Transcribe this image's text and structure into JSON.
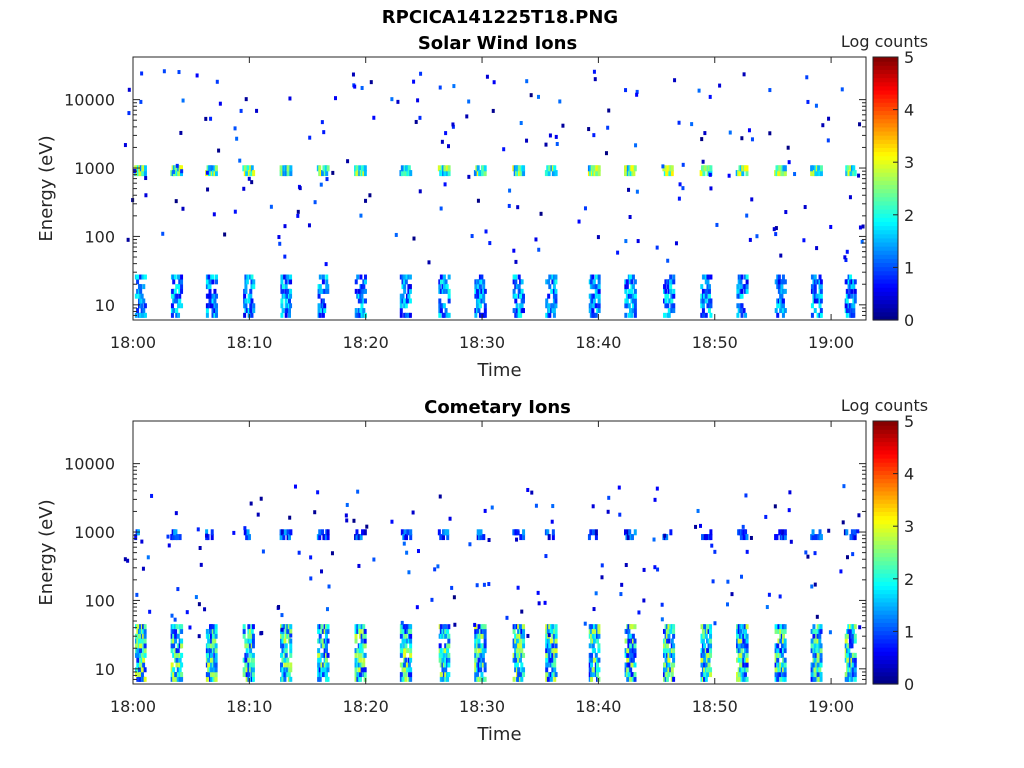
{
  "figure_title": "RPCICA141225T18.PNG",
  "chart_data": [
    {
      "type": "heatmap",
      "title": "Solar Wind Ions",
      "xlabel": "Time",
      "ylabel": "Energy (eV)",
      "x_ticks": [
        "18:00",
        "18:10",
        "18:20",
        "18:30",
        "18:40",
        "18:50",
        "19:00"
      ],
      "x_range_minutes": [
        0,
        63
      ],
      "y_scale": "log",
      "y_ticks": [
        "10",
        "100",
        "1000",
        "10000"
      ],
      "y_range_eV": [
        6,
        42000
      ],
      "colorbar": {
        "label": "Log counts",
        "ticks": [
          "0",
          "1",
          "2",
          "3",
          "4",
          "5"
        ],
        "range": [
          0,
          5
        ],
        "colormap": "jet"
      },
      "bands": [
        {
          "energy_eV": [
            800,
            1000
          ],
          "description_level": "peak log counts ~2.5-3.2 at bursts"
        },
        {
          "energy_eV": [
            8,
            25
          ],
          "description_level": "log counts ~0.5-2 at bursts"
        }
      ],
      "burst_times_min": [
        0.5,
        3.6,
        6.6,
        9.8,
        13.0,
        16.2,
        19.4,
        23.3,
        26.6,
        29.7,
        33.0,
        35.8,
        39.5,
        42.6,
        45.9,
        49.1,
        52.2,
        55.5,
        58.6,
        61.5
      ]
    },
    {
      "type": "heatmap",
      "title": "Cometary Ions",
      "xlabel": "Time",
      "ylabel": "Energy (eV)",
      "x_ticks": [
        "18:00",
        "18:10",
        "18:20",
        "18:30",
        "18:40",
        "18:50",
        "19:00"
      ],
      "x_range_minutes": [
        0,
        63
      ],
      "y_scale": "log",
      "y_ticks": [
        "10",
        "100",
        "1000",
        "10000"
      ],
      "y_range_eV": [
        6,
        42000
      ],
      "colorbar": {
        "label": "Log counts",
        "ticks": [
          "0",
          "1",
          "2",
          "3",
          "4",
          "5"
        ],
        "range": [
          0,
          5
        ],
        "colormap": "jet"
      },
      "bands": [
        {
          "energy_eV": [
            8,
            40
          ],
          "description_level": "peak log counts ~2-3 at bursts"
        },
        {
          "energy_eV": [
            800,
            2500
          ],
          "description_level": "log counts ~0.3-1.5 at bursts"
        }
      ],
      "burst_times_min": [
        0.5,
        3.6,
        6.6,
        9.8,
        13.0,
        16.2,
        19.4,
        23.3,
        26.6,
        29.7,
        33.0,
        35.8,
        39.5,
        42.6,
        45.9,
        49.1,
        52.2,
        55.5,
        58.6,
        61.5
      ]
    }
  ]
}
